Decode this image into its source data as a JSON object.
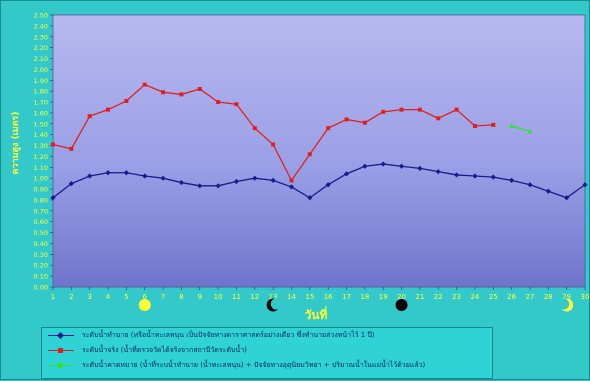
{
  "chart_data": {
    "type": "line",
    "ylabel": "ความสูง (เมตร)",
    "xlabel": "วันที่",
    "ylim": [
      0,
      2.5
    ],
    "ytick_step": 0.1,
    "x": [
      1,
      2,
      3,
      4,
      5,
      6,
      7,
      8,
      9,
      10,
      11,
      12,
      13,
      14,
      15,
      16,
      17,
      18,
      19,
      20,
      21,
      22,
      23,
      24,
      25,
      26,
      27,
      28,
      29,
      30
    ],
    "grid": "none",
    "series": [
      {
        "name": "ระดับน้ำทำนาย (หรือน้ำทะเลหนุน เป็นปัจจัยทางดาราศาสตร์อย่างเดียว ซึ่งทำนายล่วงหน้าไว้ 1 ปี)",
        "color": "#1a1a8c",
        "marker": "diamond",
        "x": [
          1,
          2,
          3,
          4,
          5,
          6,
          7,
          8,
          9,
          10,
          11,
          12,
          13,
          14,
          15,
          16,
          17,
          18,
          19,
          20,
          21,
          22,
          23,
          24,
          25,
          26,
          27,
          28,
          29,
          30
        ],
        "values": [
          0.82,
          0.95,
          1.02,
          1.05,
          1.05,
          1.02,
          1.0,
          0.96,
          0.93,
          0.93,
          0.97,
          1.0,
          0.98,
          0.92,
          0.82,
          0.94,
          1.04,
          1.11,
          1.13,
          1.11,
          1.09,
          1.06,
          1.03,
          1.02,
          1.01,
          0.98,
          0.94,
          0.88,
          0.82,
          0.94
        ]
      },
      {
        "name": "ระดับน้ำจริง (น้ำที่ตรวจวัดได้จริงจากสถานีวัดระดับน้ำ)",
        "color": "#e02020",
        "marker": "square",
        "x": [
          1,
          2,
          3,
          4,
          5,
          6,
          7,
          8,
          9,
          10,
          11,
          12,
          13,
          14,
          15,
          16,
          17,
          18,
          19,
          20,
          21,
          22,
          23,
          24,
          25
        ],
        "values": [
          1.31,
          1.27,
          1.57,
          1.63,
          1.71,
          1.86,
          1.79,
          1.77,
          1.82,
          1.7,
          1.68,
          1.46,
          1.31,
          0.98,
          1.22,
          1.46,
          1.54,
          1.51,
          1.61,
          1.63,
          1.63,
          1.55,
          1.63,
          1.48,
          1.49
        ]
      },
      {
        "name": "ระดับน้ำคาดหมาย (น้ำที่ระบน้ำทำนาย (น้ำทะเลหนุน) + ปัจจัยทางอุตุนิยมวิทยา + ปริมาณน้ำในแม่น้ำไว้ด้วยแล้ว)",
        "color": "#32e032",
        "marker": "triangle",
        "x": [
          26,
          27
        ],
        "values": [
          1.48,
          1.43
        ]
      }
    ],
    "moon_phases": [
      {
        "day": 6,
        "phase": "full",
        "icon": "full-moon-icon",
        "color": "#ffff33"
      },
      {
        "day": 13,
        "phase": "last-quarter",
        "icon": "crescent-moon-icon",
        "color": "#000000"
      },
      {
        "day": 20,
        "phase": "new",
        "icon": "new-moon-icon",
        "color": "#000000"
      },
      {
        "day": 29,
        "phase": "first-quarter",
        "icon": "crescent-moon-icon",
        "color": "#ffff33"
      }
    ]
  }
}
